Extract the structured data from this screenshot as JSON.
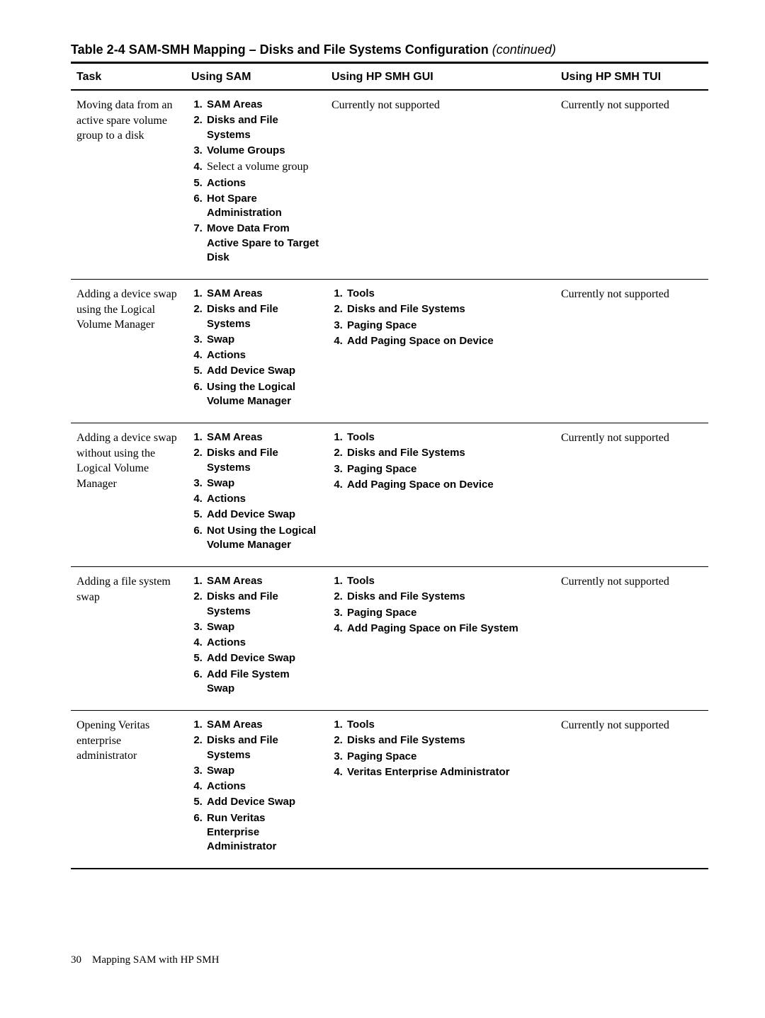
{
  "title": {
    "main": "Table 2-4 SAM-SMH Mapping – Disks and File Systems Configuration",
    "continued": "(continued)"
  },
  "headers": {
    "task": "Task",
    "sam": "Using SAM",
    "gui": "Using HP SMH GUI",
    "tui": "Using HP SMH TUI"
  },
  "rows": [
    {
      "task": "Moving data from an active spare volume group to a disk",
      "sam": [
        {
          "t": "SAM Areas",
          "bold": true
        },
        {
          "t": "Disks and File Systems",
          "bold": true
        },
        {
          "t": "Volume Groups",
          "bold": true
        },
        {
          "t": "Select a volume group",
          "bold": false
        },
        {
          "t": "Actions",
          "bold": true
        },
        {
          "t": "Hot Spare Administration",
          "bold": true
        },
        {
          "t": "Move Data From Active Spare to Target Disk",
          "bold": true
        }
      ],
      "gui_text": "Currently not supported",
      "tui": "Currently not supported"
    },
    {
      "task": "Adding a device swap using the Logical Volume Manager",
      "sam": [
        {
          "t": "SAM Areas",
          "bold": true
        },
        {
          "t": "Disks and File Systems",
          "bold": true
        },
        {
          "t": "Swap",
          "bold": true
        },
        {
          "t": "Actions",
          "bold": true
        },
        {
          "t": "Add Device Swap",
          "bold": true
        },
        {
          "t": "Using the Logical Volume Manager",
          "bold": true
        }
      ],
      "gui": [
        {
          "t": "Tools",
          "bold": true
        },
        {
          "t": "Disks and File Systems",
          "bold": true
        },
        {
          "t": "Paging Space",
          "bold": true
        },
        {
          "t": "Add Paging Space on Device",
          "bold": true
        }
      ],
      "tui": "Currently not supported"
    },
    {
      "task": "Adding a device swap without using the Logical Volume Manager",
      "sam": [
        {
          "t": "SAM Areas",
          "bold": true
        },
        {
          "t": "Disks and File Systems",
          "bold": true
        },
        {
          "t": "Swap",
          "bold": true
        },
        {
          "t": "Actions",
          "bold": true
        },
        {
          "t": "Add Device Swap",
          "bold": true
        },
        {
          "t": "Not Using the Logical Volume Manager",
          "bold": true
        }
      ],
      "gui": [
        {
          "t": "Tools",
          "bold": true
        },
        {
          "t": "Disks and File Systems",
          "bold": true
        },
        {
          "t": "Paging Space",
          "bold": true
        },
        {
          "t": "Add Paging Space on Device",
          "bold": true
        }
      ],
      "tui": "Currently not supported"
    },
    {
      "task": "Adding a file system swap",
      "sam": [
        {
          "t": "SAM Areas",
          "bold": true
        },
        {
          "t": "Disks and File Systems",
          "bold": true
        },
        {
          "t": "Swap",
          "bold": true
        },
        {
          "t": "Actions",
          "bold": true
        },
        {
          "t": "Add Device Swap",
          "bold": true
        },
        {
          "t": "Add File System Swap",
          "bold": true
        }
      ],
      "gui": [
        {
          "t": "Tools",
          "bold": true
        },
        {
          "t": "Disks and File Systems",
          "bold": true
        },
        {
          "t": "Paging Space",
          "bold": true
        },
        {
          "t": "Add Paging Space on File System",
          "bold": true
        }
      ],
      "tui": "Currently not supported"
    },
    {
      "task": "Opening Veritas enterprise administrator",
      "sam": [
        {
          "t": "SAM Areas",
          "bold": true
        },
        {
          "t": "Disks and File Systems",
          "bold": true
        },
        {
          "t": "Swap",
          "bold": true
        },
        {
          "t": "Actions",
          "bold": true
        },
        {
          "t": "Add Device Swap",
          "bold": true
        },
        {
          "t": "Run Veritas Enterprise Administrator",
          "bold": true
        }
      ],
      "gui": [
        {
          "t": "Tools",
          "bold": true
        },
        {
          "t": "Disks and File Systems",
          "bold": true
        },
        {
          "t": "Paging Space",
          "bold": true
        },
        {
          "t": "Veritas Enterprise Administrator",
          "bold": true
        }
      ],
      "tui": "Currently not supported"
    }
  ],
  "footer": {
    "page": "30",
    "label": "Mapping SAM with HP SMH"
  }
}
